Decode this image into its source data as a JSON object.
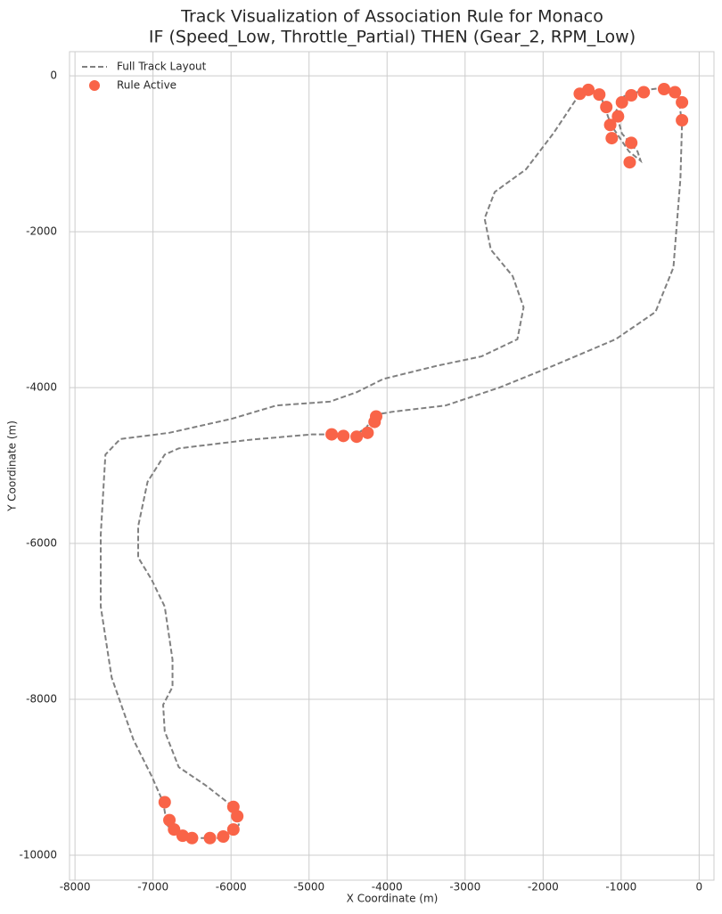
{
  "chart_data": {
    "type": "line",
    "title": [
      "Track Visualization of Association Rule for Monaco",
      "IF (Speed_Low, Throttle_Partial) THEN (Gear_2, RPM_Low)"
    ],
    "xlabel": "X Coordinate (m)",
    "ylabel": "Y Coordinate (m)",
    "xlim": [
      -8070,
      190
    ],
    "ylim": [
      -10320,
      310
    ],
    "xticks": [
      -8000,
      -7000,
      -6000,
      -5000,
      -4000,
      -3000,
      -2000,
      -1000,
      0
    ],
    "yticks": [
      -10000,
      -8000,
      -6000,
      -4000,
      -2000,
      0
    ],
    "grid": true,
    "legend": "upper left",
    "series": [
      {
        "name": "Full Track Layout",
        "type": "line",
        "style": "dashed",
        "color": "#808080",
        "x": [
          -220,
          -240,
          -330,
          -560,
          -1070,
          -1870,
          -2560,
          -3250,
          -3930,
          -4160,
          -4270,
          -4450,
          -4730,
          -4960,
          -5760,
          -6670,
          -6850,
          -7070,
          -7190,
          -7190,
          -7020,
          -6850,
          -6750,
          -6750,
          -6870,
          -6850,
          -6670,
          -6330,
          -5970,
          -5900,
          -6050,
          -6670,
          -6820,
          -6870,
          -7020,
          -7250,
          -7530,
          -7670,
          -7670,
          -7610,
          -7420,
          -6790,
          -5990,
          -5420,
          -4730,
          -4390,
          -4050,
          -3360,
          -2790,
          -2330,
          -2250,
          -2390,
          -2670,
          -2750,
          -2620,
          -2220,
          -1870,
          -1530,
          -1420,
          -1250,
          -1130,
          -900,
          -750,
          -790,
          -990,
          -1070,
          -960,
          -730,
          -450,
          -270
        ],
        "y": [
          -630,
          -1320,
          -2460,
          -3030,
          -3380,
          -3720,
          -4000,
          -4230,
          -4310,
          -4350,
          -4520,
          -4630,
          -4600,
          -4600,
          -4670,
          -4780,
          -4860,
          -5210,
          -5780,
          -6180,
          -6460,
          -6810,
          -7490,
          -7840,
          -8070,
          -8410,
          -8870,
          -9100,
          -9380,
          -9610,
          -9780,
          -9780,
          -9610,
          -9320,
          -8980,
          -8520,
          -7720,
          -6810,
          -5890,
          -4860,
          -4660,
          -4580,
          -4400,
          -4230,
          -4180,
          -4060,
          -3890,
          -3720,
          -3600,
          -3380,
          -2970,
          -2570,
          -2230,
          -1830,
          -1490,
          -1200,
          -740,
          -230,
          -170,
          -290,
          -630,
          -970,
          -1090,
          -970,
          -740,
          -460,
          -260,
          -190,
          -150,
          -190
        ]
      },
      {
        "name": "Rule Active",
        "type": "scatter",
        "color": "#f96448",
        "x": [
          -6850,
          -6790,
          -6730,
          -6620,
          -6500,
          -6270,
          -6100,
          -5970,
          -5920,
          -5970,
          -4710,
          -4560,
          -4390,
          -4250,
          -4160,
          -4140,
          -1530,
          -1420,
          -1280,
          -1190,
          -1140,
          -1120,
          -1040,
          -990,
          -870,
          -710,
          -870,
          -890,
          -450,
          -310,
          -220,
          -220
        ],
        "y": [
          -9320,
          -9550,
          -9670,
          -9750,
          -9780,
          -9780,
          -9760,
          -9670,
          -9500,
          -9380,
          -4600,
          -4620,
          -4630,
          -4580,
          -4440,
          -4370,
          -230,
          -180,
          -240,
          -400,
          -630,
          -800,
          -520,
          -340,
          -250,
          -210,
          -860,
          -1110,
          -170,
          -210,
          -340,
          -570
        ]
      }
    ]
  }
}
